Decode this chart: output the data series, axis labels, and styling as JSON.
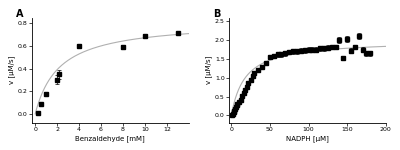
{
  "panel_A": {
    "label": "A",
    "xlabel": "Benzaldehyde [mM]",
    "ylabel": "v [µM/s]",
    "xlim": [
      -0.3,
      14
    ],
    "ylim": [
      -0.08,
      0.85
    ],
    "xticks": [
      0,
      2,
      4,
      6,
      8,
      10,
      12
    ],
    "yticks": [
      0.0,
      0.2,
      0.4,
      0.6,
      0.8
    ],
    "data_x": [
      0.3,
      0.5,
      1.0,
      2.0,
      2.2,
      4.0,
      8.0,
      10.0,
      13.0
    ],
    "data_y": [
      0.01,
      0.09,
      0.18,
      0.3,
      0.35,
      0.6,
      0.59,
      0.69,
      0.71
    ],
    "data_yerr": [
      0.005,
      0.008,
      0.012,
      0.04,
      0.04,
      0.015,
      0.015,
      0.015,
      0.012
    ],
    "Vmax": 0.82,
    "Km": 2.2
  },
  "panel_B": {
    "label": "B",
    "xlabel": "NADPH [µM]",
    "ylabel": "v [µM/s]",
    "xlim": [
      -3,
      200
    ],
    "ylim": [
      -0.2,
      2.6
    ],
    "xticks": [
      0,
      50,
      100,
      150,
      200
    ],
    "yticks": [
      0.0,
      0.5,
      1.0,
      1.5,
      2.0,
      2.5
    ],
    "data_x": [
      1,
      2,
      3,
      4,
      5,
      6,
      7,
      8,
      10,
      12,
      14,
      16,
      18,
      20,
      22,
      25,
      28,
      30,
      35,
      40,
      45,
      50,
      55,
      60,
      65,
      70,
      75,
      80,
      85,
      90,
      95,
      100,
      105,
      110,
      115,
      120,
      125,
      130,
      135,
      140,
      145,
      150,
      155,
      160,
      165,
      170,
      175,
      180
    ],
    "data_y": [
      0.02,
      0.05,
      0.08,
      0.12,
      0.18,
      0.22,
      0.27,
      0.3,
      0.35,
      0.42,
      0.52,
      0.6,
      0.68,
      0.76,
      0.85,
      0.95,
      1.05,
      1.12,
      1.22,
      1.28,
      1.38,
      1.55,
      1.58,
      1.62,
      1.62,
      1.65,
      1.68,
      1.7,
      1.7,
      1.72,
      1.73,
      1.75,
      1.75,
      1.75,
      1.78,
      1.78,
      1.8,
      1.82,
      1.82,
      2.0,
      1.52,
      2.03,
      1.72,
      1.82,
      2.12,
      1.75,
      1.65,
      1.65
    ],
    "data_yerr": [
      0.01,
      0.01,
      0.01,
      0.02,
      0.02,
      0.02,
      0.02,
      0.02,
      0.03,
      0.03,
      0.03,
      0.04,
      0.04,
      0.04,
      0.05,
      0.05,
      0.05,
      0.05,
      0.05,
      0.05,
      0.05,
      0.06,
      0.06,
      0.06,
      0.06,
      0.06,
      0.06,
      0.06,
      0.06,
      0.06,
      0.06,
      0.06,
      0.06,
      0.06,
      0.06,
      0.06,
      0.06,
      0.06,
      0.06,
      0.08,
      0.06,
      0.08,
      0.06,
      0.06,
      0.08,
      0.06,
      0.06,
      0.06
    ],
    "Vmax": 2.0,
    "Km": 18.0
  },
  "line_color": "#b0b0b0",
  "marker_color": "black",
  "marker": "s",
  "markersize": 2.2,
  "linewidth": 0.8,
  "bg_color": "#ffffff"
}
